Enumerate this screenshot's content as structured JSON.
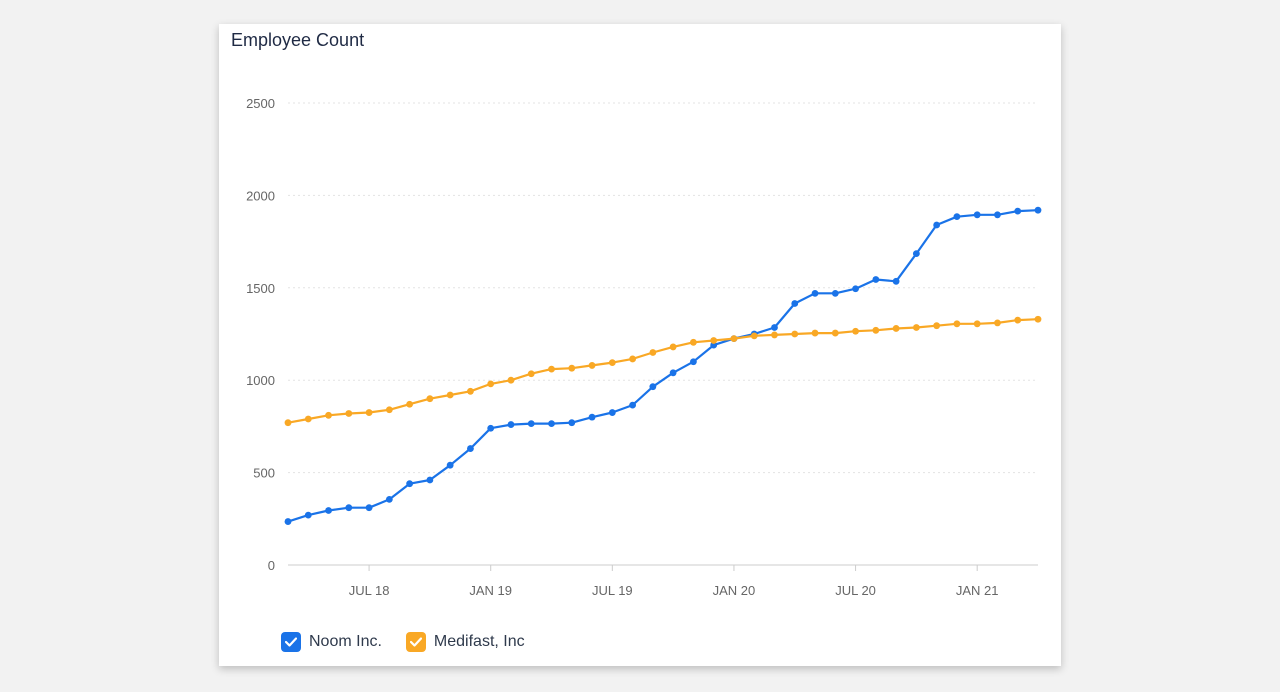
{
  "chart_data": {
    "type": "line",
    "title": "Employee Count",
    "xlabel": "",
    "ylabel": "",
    "ylim": [
      0,
      2500
    ],
    "yticks": [
      0,
      500,
      1000,
      1500,
      2000,
      2500
    ],
    "xticks": [
      "JUL 18",
      "JAN 19",
      "JUL 19",
      "JAN 20",
      "JUL 20",
      "JAN 21"
    ],
    "xtick_index": [
      4,
      10,
      16,
      22,
      28,
      34
    ],
    "x": [
      "Mar 18",
      "Apr 18",
      "May 18",
      "Jun 18",
      "Jul 18",
      "Aug 18",
      "Sep 18",
      "Oct 18",
      "Nov 18",
      "Dec 18",
      "Jan 19",
      "Feb 19",
      "Mar 19",
      "Apr 19",
      "May 19",
      "Jun 19",
      "Jul 19",
      "Aug 19",
      "Sep 19",
      "Oct 19",
      "Nov 19",
      "Dec 19",
      "Jan 20",
      "Feb 20",
      "Mar 20",
      "Apr 20",
      "May 20",
      "Jun 20",
      "Jul 20",
      "Aug 20",
      "Sep 20",
      "Oct 20",
      "Nov 20",
      "Dec 20",
      "Jan 21",
      "Feb 21",
      "Mar 21",
      "Apr 21"
    ],
    "grid": true,
    "legend_position": "bottom-left",
    "series": [
      {
        "name": "Noom Inc.",
        "color": "#1a73e8",
        "values": [
          235,
          270,
          295,
          310,
          310,
          355,
          440,
          460,
          540,
          630,
          740,
          760,
          765,
          765,
          770,
          800,
          825,
          865,
          965,
          1040,
          1100,
          1190,
          1225,
          1250,
          1285,
          1415,
          1470,
          1470,
          1495,
          1545,
          1535,
          1685,
          1840,
          1885,
          1895,
          1895,
          1915,
          1920
        ]
      },
      {
        "name": "Medifast, Inc",
        "color": "#f9a825",
        "values": [
          770,
          790,
          810,
          820,
          825,
          840,
          870,
          900,
          920,
          940,
          980,
          1000,
          1035,
          1060,
          1065,
          1080,
          1095,
          1115,
          1150,
          1180,
          1205,
          1215,
          1225,
          1240,
          1245,
          1250,
          1255,
          1255,
          1265,
          1270,
          1280,
          1285,
          1295,
          1305,
          1305,
          1310,
          1325,
          1330
        ]
      }
    ]
  },
  "legend": {
    "items": [
      {
        "label": "Noom Inc.",
        "color": "#1a73e8",
        "checked": true
      },
      {
        "label": "Medifast, Inc",
        "color": "#f9a825",
        "checked": true
      }
    ]
  }
}
